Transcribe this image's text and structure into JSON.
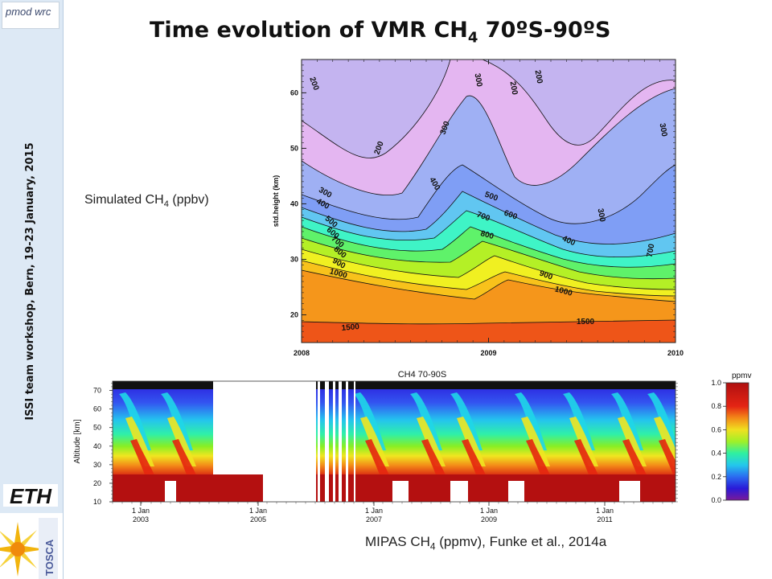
{
  "sidebar": {
    "logo_text": "pmod wrc",
    "vertical_text": "ISSI team workshop, Bern, 19-23 January, 2015",
    "eth_logo": "ETH",
    "tosca_logo": "TOSCA"
  },
  "title": {
    "main": "Time evolution of VMR CH",
    "sub": "4",
    "rest": " 70ºS-90ºS"
  },
  "simulated_label": {
    "text": "Simulated CH",
    "sub": "4",
    "rest": " (ppbv)"
  },
  "mipas_label": {
    "text": "MIPAS CH",
    "sub": "4",
    "rest": " (ppmv), Funke et al., 2014a"
  },
  "chart_data": [
    {
      "type": "heatmap",
      "ylabel": "std.height (km)",
      "xlabel": "",
      "x_ticks": [
        "2008",
        "2009",
        "2010"
      ],
      "y_ticks": [
        20,
        30,
        40,
        50,
        60
      ],
      "xlim": [
        2008,
        2010
      ],
      "ylim": [
        15,
        66
      ],
      "contour_levels": [
        200,
        300,
        400,
        500,
        600,
        700,
        800,
        900,
        1000,
        1500
      ],
      "contour_labels": [
        "200",
        "200",
        "200",
        "200",
        "300",
        "300",
        "300",
        "300",
        "300",
        "400",
        "400",
        "400",
        "500",
        "500",
        "600",
        "600",
        "700",
        "700",
        "700",
        "800",
        "800",
        "900",
        "900",
        "1000",
        "1000",
        "1500",
        "1500"
      ]
    },
    {
      "type": "heatmap",
      "title": "CH4 70-90S",
      "ylabel": "Altitude [km]",
      "x_ticks": [
        "1 Jan 2003",
        "1 Jan 2005",
        "1 Jan 2007",
        "1 Jan 2009",
        "1 Jan 2011"
      ],
      "x_tick_lines": [
        [
          "1 Jan",
          "2003"
        ],
        [
          "1 Jan",
          "2005"
        ],
        [
          "1 Jan",
          "2007"
        ],
        [
          "1 Jan",
          "2009"
        ],
        [
          "1 Jan",
          "2011"
        ]
      ],
      "y_ticks": [
        10,
        20,
        30,
        40,
        50,
        60,
        70
      ],
      "ylim": [
        10,
        75
      ],
      "colorbar": {
        "label": "ppmv",
        "ticks": [
          "1.0",
          "0.8",
          "0.6",
          "0.4",
          "0.2",
          "0.0"
        ],
        "range": [
          0,
          1.0
        ]
      }
    }
  ],
  "colors": {
    "sidebar_bg": "#dde9f5",
    "scale_lowest": "#e6b3f0",
    "scale_highest": "#ee4a18"
  }
}
